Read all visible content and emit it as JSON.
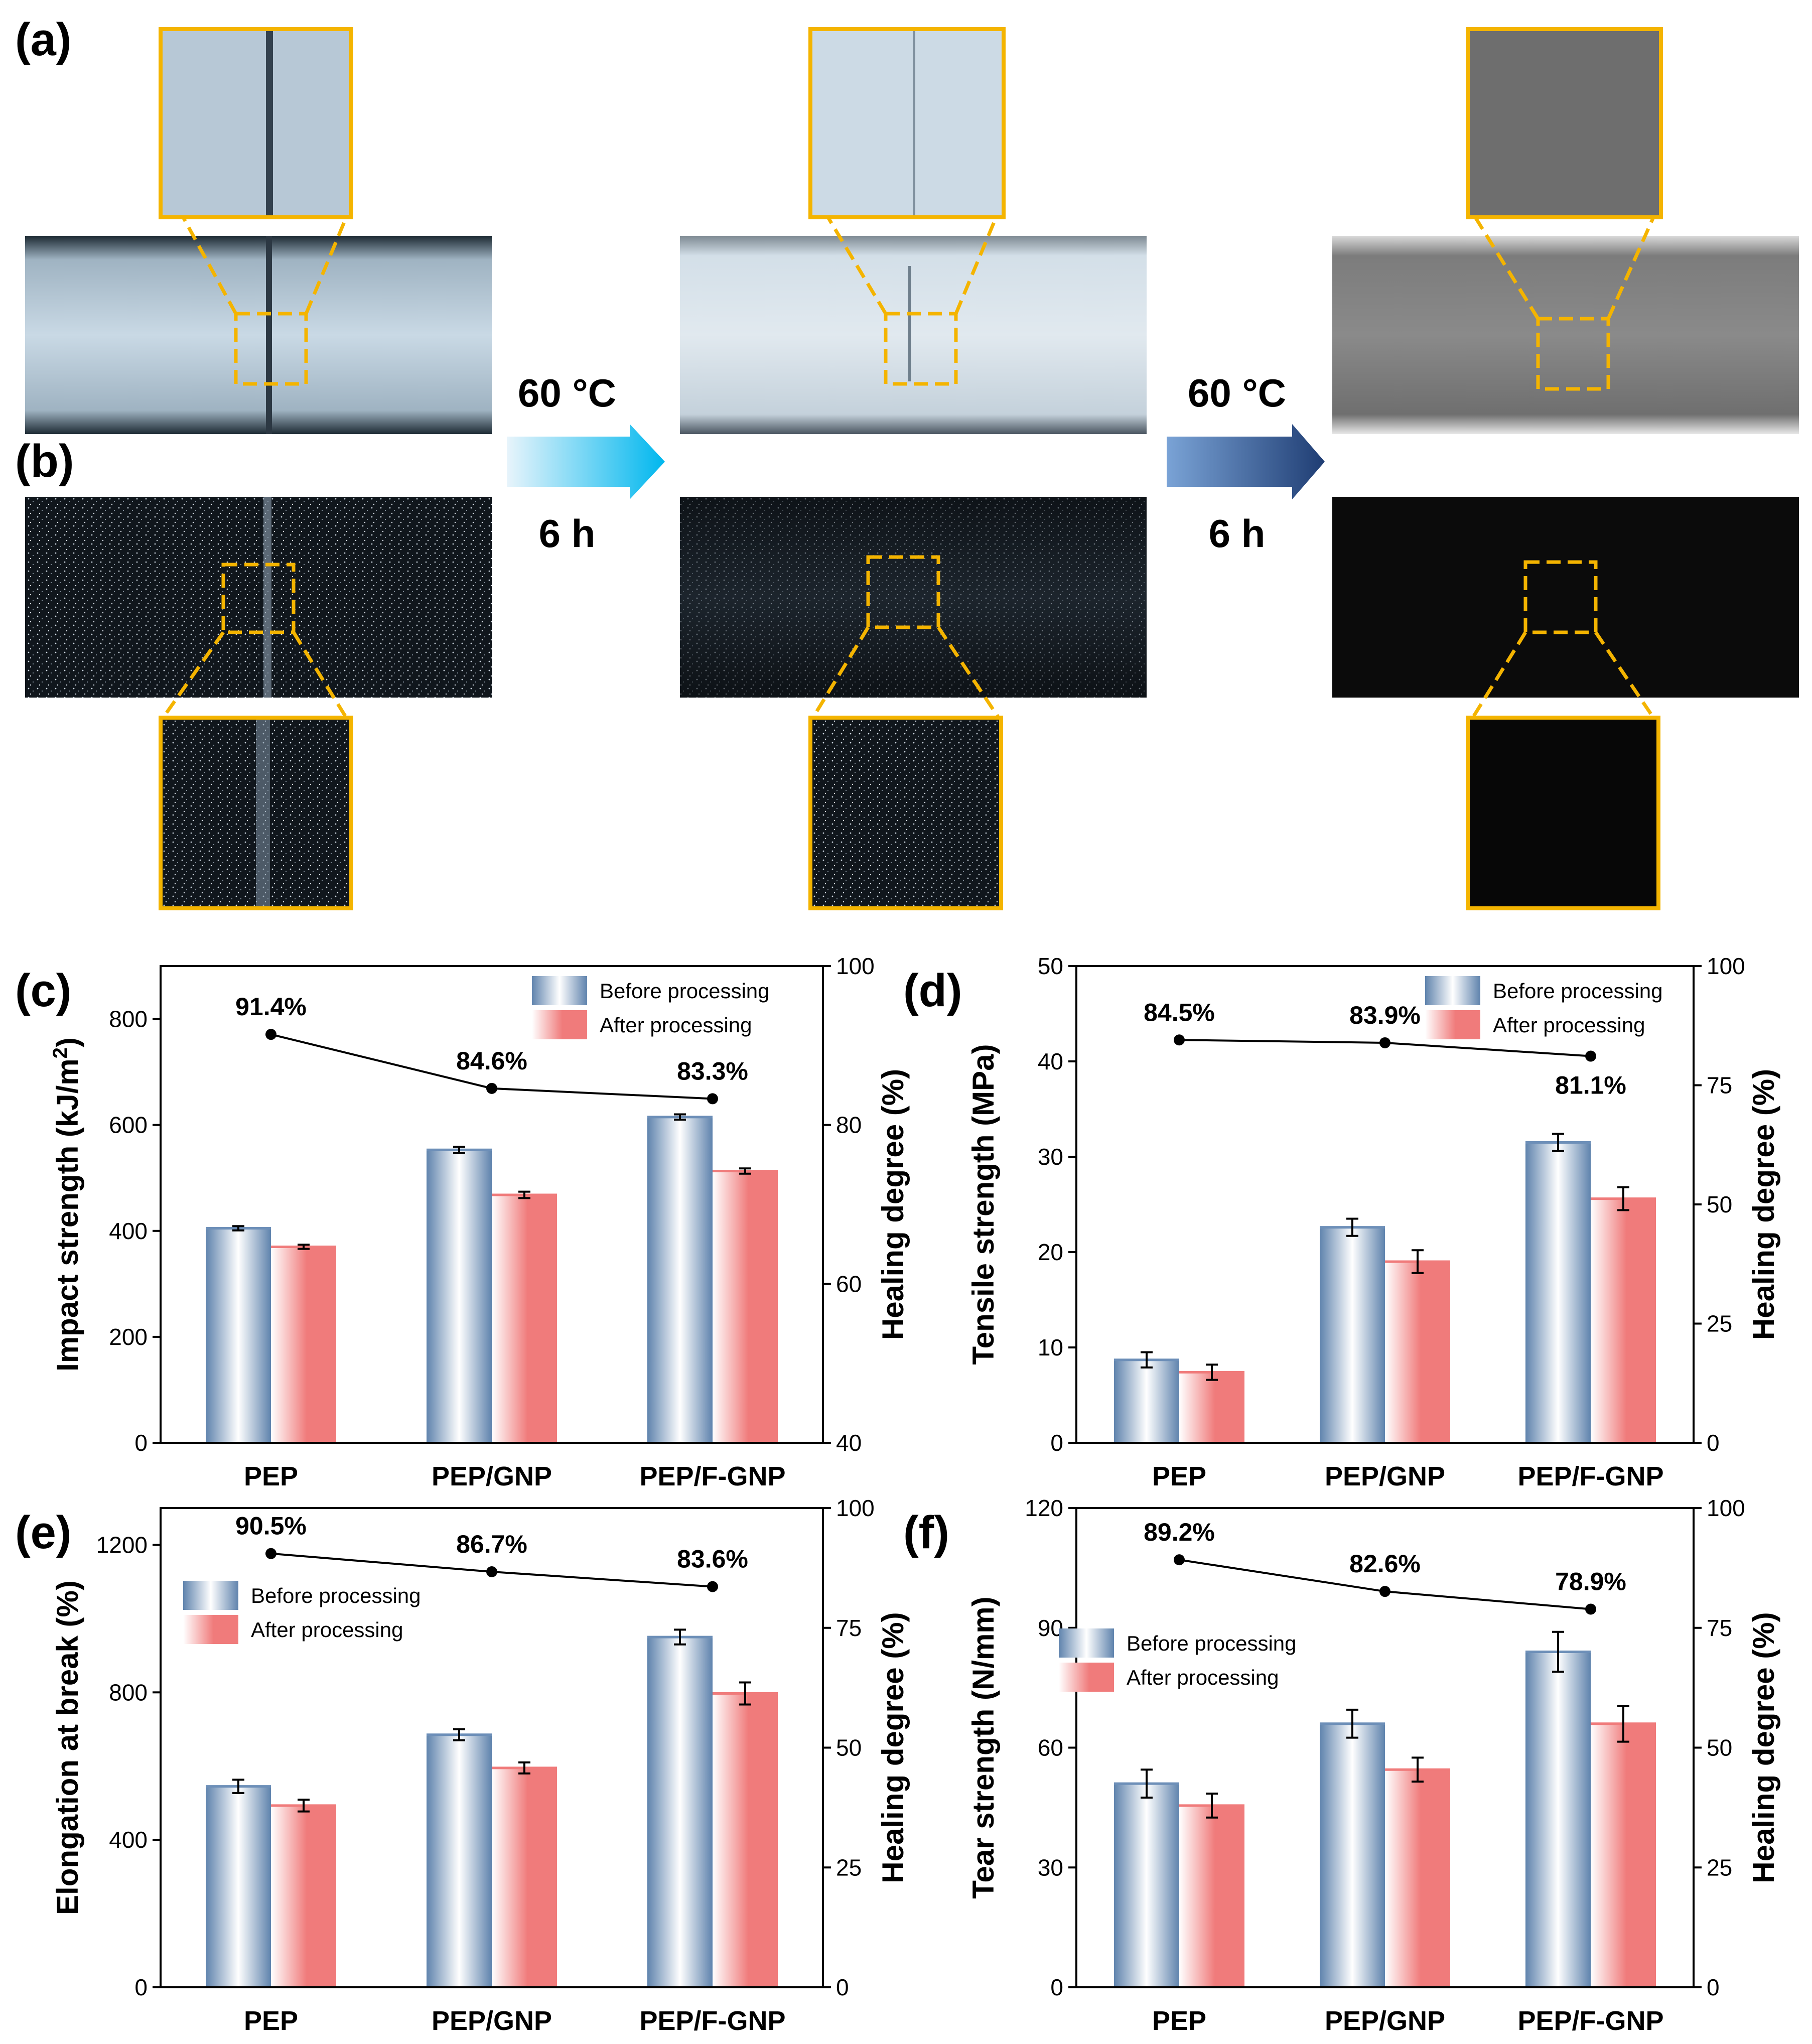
{
  "photo_panels": {
    "a": {
      "letter": "(a)"
    },
    "b": {
      "letter": "(b)"
    },
    "step1": {
      "temp": "60 °C",
      "time": "6 h"
    },
    "step2": {
      "temp": "60 °C",
      "time": "6 h"
    }
  },
  "colors": {
    "frame": "#f4b400",
    "before": "#6d8fb8",
    "after": "#f07b7b",
    "arrow1": "#00b7ee",
    "arrow2": "#1f3d73"
  },
  "chart_data": [
    {
      "panel": "(c)",
      "type": "bar",
      "categories": [
        "PEP",
        "PEP/GNP",
        "PEP/F-GNP"
      ],
      "series": [
        {
          "name": "Before processing",
          "values": [
            405,
            553,
            615
          ],
          "errors": [
            4,
            6,
            5
          ]
        },
        {
          "name": "After processing",
          "values": [
            370,
            468,
            513
          ],
          "errors": [
            4,
            6,
            5
          ]
        }
      ],
      "healing": {
        "values": [
          91.4,
          84.6,
          83.3
        ],
        "labels": [
          "91.4%",
          "84.6%",
          "83.3%"
        ]
      },
      "ylabel_main": "Impact strength (kJ/m",
      "ylabel_sup": "2",
      "ylabel_end": ")",
      "ylabel_right": "Healing degree (%)",
      "ylim": [
        0,
        900
      ],
      "yticks": [
        0,
        200,
        400,
        600,
        800
      ],
      "y2lim": [
        40,
        100
      ],
      "y2ticks": [
        40,
        60,
        80,
        100
      ],
      "legend": [
        "Before processing",
        "After processing"
      ]
    },
    {
      "panel": "(d)",
      "type": "bar",
      "categories": [
        "PEP",
        "PEP/GNP",
        "PEP/F-GNP"
      ],
      "series": [
        {
          "name": "Before processing",
          "values": [
            8.7,
            22.6,
            31.5
          ],
          "errors": [
            0.8,
            0.9,
            0.9
          ]
        },
        {
          "name": "After processing",
          "values": [
            7.4,
            19.0,
            25.6
          ],
          "errors": [
            0.8,
            1.2,
            1.2
          ]
        }
      ],
      "healing": {
        "values": [
          84.5,
          83.9,
          81.1
        ],
        "labels": [
          "84.5%",
          "83.9%",
          "81.1%"
        ]
      },
      "ylabel_main": "Tensile strength (MPa)",
      "ylabel_right": "Healing degree (%)",
      "ylim": [
        0,
        50
      ],
      "yticks": [
        0,
        10,
        20,
        30,
        40,
        50
      ],
      "y2lim": [
        0,
        100
      ],
      "y2ticks": [
        0,
        25,
        50,
        75,
        100
      ],
      "legend": [
        "Before processing",
        "After processing"
      ]
    },
    {
      "panel": "(e)",
      "type": "bar",
      "categories": [
        "PEP",
        "PEP/GNP",
        "PEP/F-GNP"
      ],
      "series": [
        {
          "name": "Before processing",
          "values": [
            545,
            685,
            950
          ],
          "errors": [
            18,
            15,
            20
          ]
        },
        {
          "name": "After processing",
          "values": [
            493,
            595,
            797
          ],
          "errors": [
            16,
            15,
            30
          ]
        }
      ],
      "healing": {
        "values": [
          90.5,
          86.7,
          83.6
        ],
        "labels": [
          "90.5%",
          "86.7%",
          "83.6%"
        ]
      },
      "ylabel_main": "Elongation at break (%)",
      "ylabel_right": "Healing degree (%)",
      "ylim": [
        0,
        1300
      ],
      "yticks": [
        0,
        400,
        800,
        1200
      ],
      "y2lim": [
        0,
        100
      ],
      "y2ticks": [
        0,
        25,
        50,
        75,
        100
      ],
      "legend": [
        "Before processing",
        "After processing"
      ]
    },
    {
      "panel": "(f)",
      "type": "bar",
      "categories": [
        "PEP",
        "PEP/GNP",
        "PEP/F-GNP"
      ],
      "series": [
        {
          "name": "Before processing",
          "values": [
            51,
            66,
            84
          ],
          "errors": [
            3.5,
            3.5,
            5
          ]
        },
        {
          "name": "After processing",
          "values": [
            45.5,
            54.5,
            66
          ],
          "errors": [
            3,
            3,
            4.5
          ]
        }
      ],
      "healing": {
        "values": [
          89.2,
          82.6,
          78.9
        ],
        "labels": [
          "89.2%",
          "82.6%",
          "78.9%"
        ]
      },
      "ylabel_main": "Tear strength (N/mm)",
      "ylabel_right": "Healing degree (%)",
      "ylim": [
        0,
        120
      ],
      "yticks": [
        0,
        30,
        60,
        90,
        120
      ],
      "y2lim": [
        0,
        100
      ],
      "y2ticks": [
        0,
        25,
        50,
        75,
        100
      ],
      "legend": [
        "Before processing",
        "After processing"
      ]
    }
  ]
}
